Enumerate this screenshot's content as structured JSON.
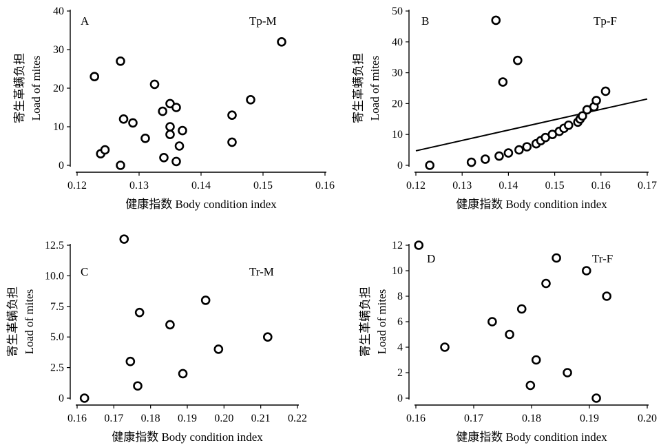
{
  "chart_data": [
    {
      "type": "scatter",
      "panel": "A",
      "code": "Tp-M",
      "xlabel": "健康指数 Body condition index",
      "ylabel_zh": "寄生革螨负担",
      "ylabel_en": "Load of mites",
      "xlim": [
        0.12,
        0.16
      ],
      "ylim": [
        0,
        40
      ],
      "xticks": [
        "0.12",
        "0.13",
        "0.14",
        "0.15",
        "0.16"
      ],
      "yticks": [
        "0",
        "10",
        "20",
        "30",
        "40"
      ],
      "points": [
        {
          "x": 0.1228,
          "y": 23
        },
        {
          "x": 0.1238,
          "y": 3
        },
        {
          "x": 0.1245,
          "y": 4
        },
        {
          "x": 0.127,
          "y": 27
        },
        {
          "x": 0.127,
          "y": 0
        },
        {
          "x": 0.1275,
          "y": 12
        },
        {
          "x": 0.129,
          "y": 11
        },
        {
          "x": 0.131,
          "y": 7
        },
        {
          "x": 0.1325,
          "y": 21
        },
        {
          "x": 0.1338,
          "y": 14
        },
        {
          "x": 0.134,
          "y": 2
        },
        {
          "x": 0.135,
          "y": 16
        },
        {
          "x": 0.135,
          "y": 10
        },
        {
          "x": 0.135,
          "y": 8
        },
        {
          "x": 0.136,
          "y": 15
        },
        {
          "x": 0.136,
          "y": 1
        },
        {
          "x": 0.1365,
          "y": 5
        },
        {
          "x": 0.137,
          "y": 9
        },
        {
          "x": 0.145,
          "y": 13
        },
        {
          "x": 0.145,
          "y": 6
        },
        {
          "x": 0.148,
          "y": 17
        },
        {
          "x": 0.153,
          "y": 32
        }
      ]
    },
    {
      "type": "scatter",
      "panel": "B",
      "code": "Tp-F",
      "xlabel": "健康指数 Body condition index",
      "ylabel_zh": "寄生革螨负担",
      "ylabel_en": "Load of mites",
      "xlim": [
        0.12,
        0.17
      ],
      "ylim": [
        0,
        50
      ],
      "xticks": [
        "0.12",
        "0.13",
        "0.14",
        "0.15",
        "0.16",
        "0.17"
      ],
      "yticks": [
        "0",
        "10",
        "20",
        "30",
        "40",
        "50"
      ],
      "points": [
        {
          "x": 0.123,
          "y": 0
        },
        {
          "x": 0.132,
          "y": 1
        },
        {
          "x": 0.135,
          "y": 2
        },
        {
          "x": 0.1373,
          "y": 47
        },
        {
          "x": 0.138,
          "y": 3
        },
        {
          "x": 0.1388,
          "y": 27
        },
        {
          "x": 0.14,
          "y": 4
        },
        {
          "x": 0.142,
          "y": 34
        },
        {
          "x": 0.1423,
          "y": 5
        },
        {
          "x": 0.144,
          "y": 6
        },
        {
          "x": 0.146,
          "y": 7
        },
        {
          "x": 0.147,
          "y": 8
        },
        {
          "x": 0.148,
          "y": 9
        },
        {
          "x": 0.1495,
          "y": 10
        },
        {
          "x": 0.151,
          "y": 11
        },
        {
          "x": 0.152,
          "y": 12
        },
        {
          "x": 0.153,
          "y": 13
        },
        {
          "x": 0.155,
          "y": 14
        },
        {
          "x": 0.1555,
          "y": 15
        },
        {
          "x": 0.156,
          "y": 16
        },
        {
          "x": 0.157,
          "y": 18
        },
        {
          "x": 0.1585,
          "y": 19
        },
        {
          "x": 0.159,
          "y": 21
        },
        {
          "x": 0.161,
          "y": 24
        }
      ],
      "trendline": [
        {
          "x": 0.12,
          "y": 4.7
        },
        {
          "x": 0.17,
          "y": 21.5
        }
      ]
    },
    {
      "type": "scatter",
      "panel": "C",
      "code": "Tr-M",
      "xlabel": "健康指数 Body condition index",
      "ylabel_zh": "寄生革螨负担",
      "ylabel_en": "Load of mites",
      "xlim": [
        0.16,
        0.22
      ],
      "ylim": [
        0,
        12.5
      ],
      "xticks": [
        "0.16",
        "0.17",
        "0.18",
        "0.19",
        "0.20",
        "0.21",
        "0.22"
      ],
      "yticks": [
        "0",
        "2.5",
        "5.0",
        "7.5",
        "10.0",
        "12.5"
      ],
      "points": [
        {
          "x": 0.162,
          "y": 0
        },
        {
          "x": 0.1728,
          "y": 13
        },
        {
          "x": 0.1745,
          "y": 3
        },
        {
          "x": 0.1765,
          "y": 1
        },
        {
          "x": 0.177,
          "y": 7
        },
        {
          "x": 0.1853,
          "y": 6
        },
        {
          "x": 0.1888,
          "y": 2
        },
        {
          "x": 0.195,
          "y": 8
        },
        {
          "x": 0.1985,
          "y": 4
        },
        {
          "x": 0.2119,
          "y": 5
        }
      ]
    },
    {
      "type": "scatter",
      "panel": "D",
      "code": "Tr-F",
      "xlabel": "健康指数 Body condition index",
      "ylabel_zh": "寄生革螨负担",
      "ylabel_en": "Load of mites",
      "xlim": [
        0.16,
        0.2
      ],
      "ylim": [
        0,
        12
      ],
      "xticks": [
        "0.16",
        "0.17",
        "0.18",
        "0.19",
        "0.20"
      ],
      "yticks": [
        "0",
        "2",
        "4",
        "6",
        "8",
        "10",
        "12"
      ],
      "points": [
        {
          "x": 0.1605,
          "y": 12
        },
        {
          "x": 0.165,
          "y": 4
        },
        {
          "x": 0.1732,
          "y": 6
        },
        {
          "x": 0.1762,
          "y": 5
        },
        {
          "x": 0.1783,
          "y": 7
        },
        {
          "x": 0.1798,
          "y": 1
        },
        {
          "x": 0.1808,
          "y": 3
        },
        {
          "x": 0.1825,
          "y": 9
        },
        {
          "x": 0.1843,
          "y": 11
        },
        {
          "x": 0.1862,
          "y": 2
        },
        {
          "x": 0.1895,
          "y": 10
        },
        {
          "x": 0.1912,
          "y": 0
        },
        {
          "x": 0.193,
          "y": 8
        }
      ]
    }
  ]
}
